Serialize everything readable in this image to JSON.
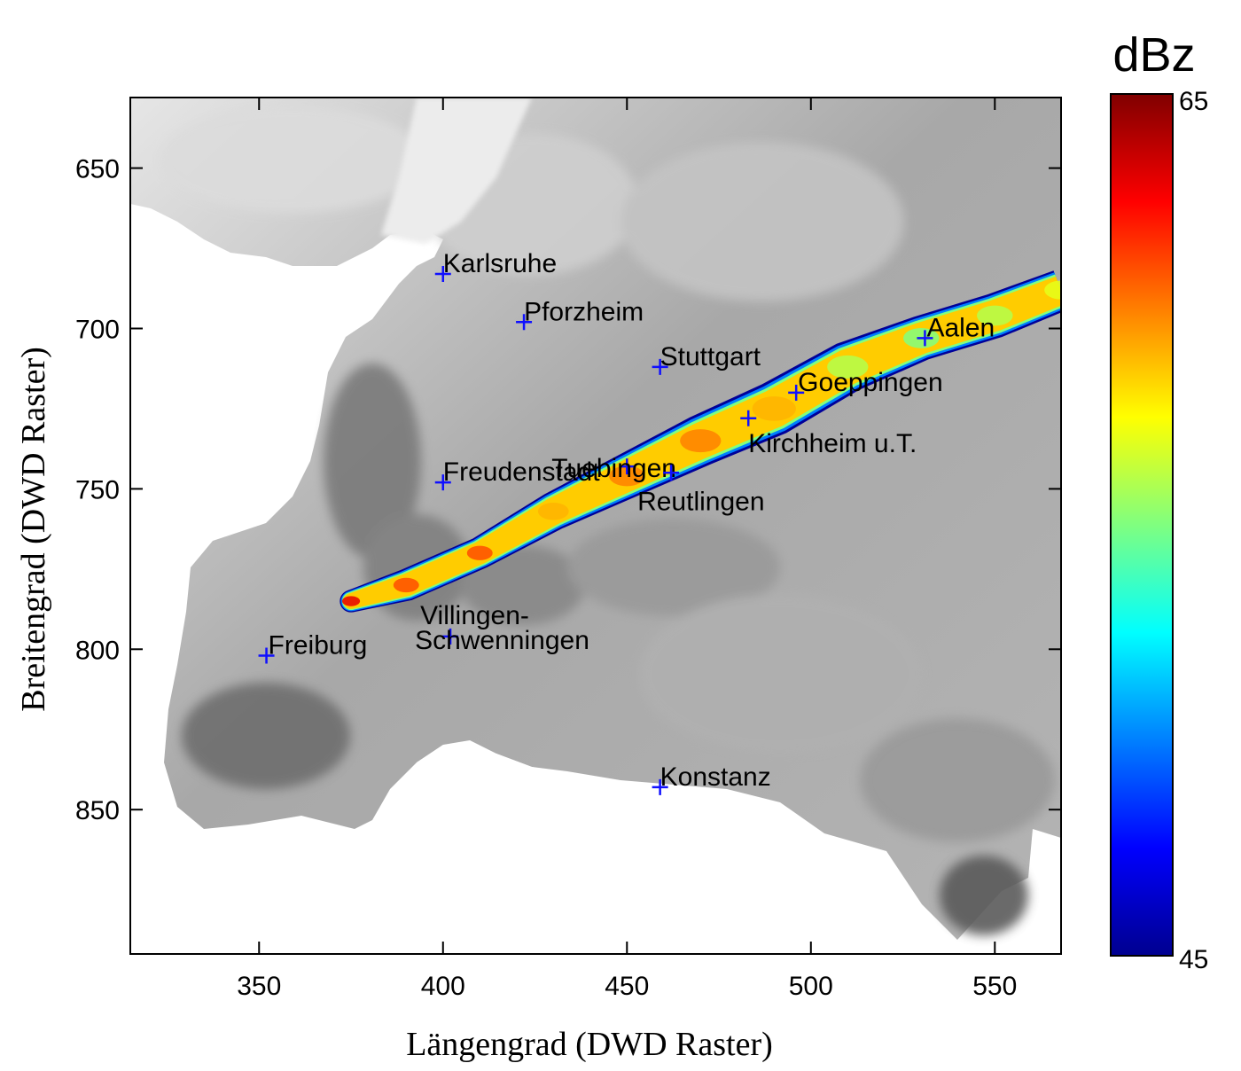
{
  "chart_data": {
    "type": "heatmap",
    "title": "",
    "xlabel": "Längengrad (DWD Raster)",
    "ylabel": "Breitengrad (DWD Raster)",
    "xlim": [
      315,
      568
    ],
    "ylim": [
      628,
      895
    ],
    "y_reversed": true,
    "xticks": [
      350,
      400,
      450,
      500,
      550
    ],
    "yticks": [
      650,
      700,
      750,
      800,
      850
    ],
    "background": "terrain elevation (grayscale)",
    "colorbar": {
      "unit": "dBz",
      "min": 45,
      "max": 65,
      "min_label": "45",
      "max_label": "65",
      "colormap": "jet"
    },
    "swath": {
      "description": "hail swath reflectivity >= 45 dBz",
      "centerline": [
        [
          375,
          785
        ],
        [
          390,
          780
        ],
        [
          410,
          770
        ],
        [
          430,
          757
        ],
        [
          450,
          746
        ],
        [
          470,
          735
        ],
        [
          490,
          725
        ],
        [
          510,
          712
        ],
        [
          530,
          703
        ],
        [
          550,
          696
        ],
        [
          568,
          688
        ]
      ],
      "half_width": [
        3.5,
        5,
        5,
        6,
        7,
        8,
        8.5,
        8,
        7,
        7,
        6.5
      ],
      "core_value_by_point": [
        63,
        61,
        61,
        59,
        60,
        60,
        59,
        56,
        55,
        56,
        57
      ]
    },
    "cities": [
      {
        "name": "Karlsruhe",
        "x": 400,
        "y": 683
      },
      {
        "name": "Pforzheim",
        "x": 422,
        "y": 698
      },
      {
        "name": "Stuttgart",
        "x": 459,
        "y": 712
      },
      {
        "name": "Aalen",
        "x": 531,
        "y": 703
      },
      {
        "name": "Goeppingen",
        "x": 496,
        "y": 720
      },
      {
        "name": "Kirchheim u.T.",
        "x": 483,
        "y": 728
      },
      {
        "name": "Tuebingen",
        "x": 450,
        "y": 743
      },
      {
        "name": "Reutlingen",
        "x": 462,
        "y": 745
      },
      {
        "name": "Freudenstadt",
        "x": 400,
        "y": 748
      },
      {
        "name": "Villingen-\nSchwenningen",
        "x": 402,
        "y": 796
      },
      {
        "name": "Freiburg",
        "x": 352,
        "y": 802
      },
      {
        "name": "Konstanz",
        "x": 459,
        "y": 843
      }
    ]
  }
}
